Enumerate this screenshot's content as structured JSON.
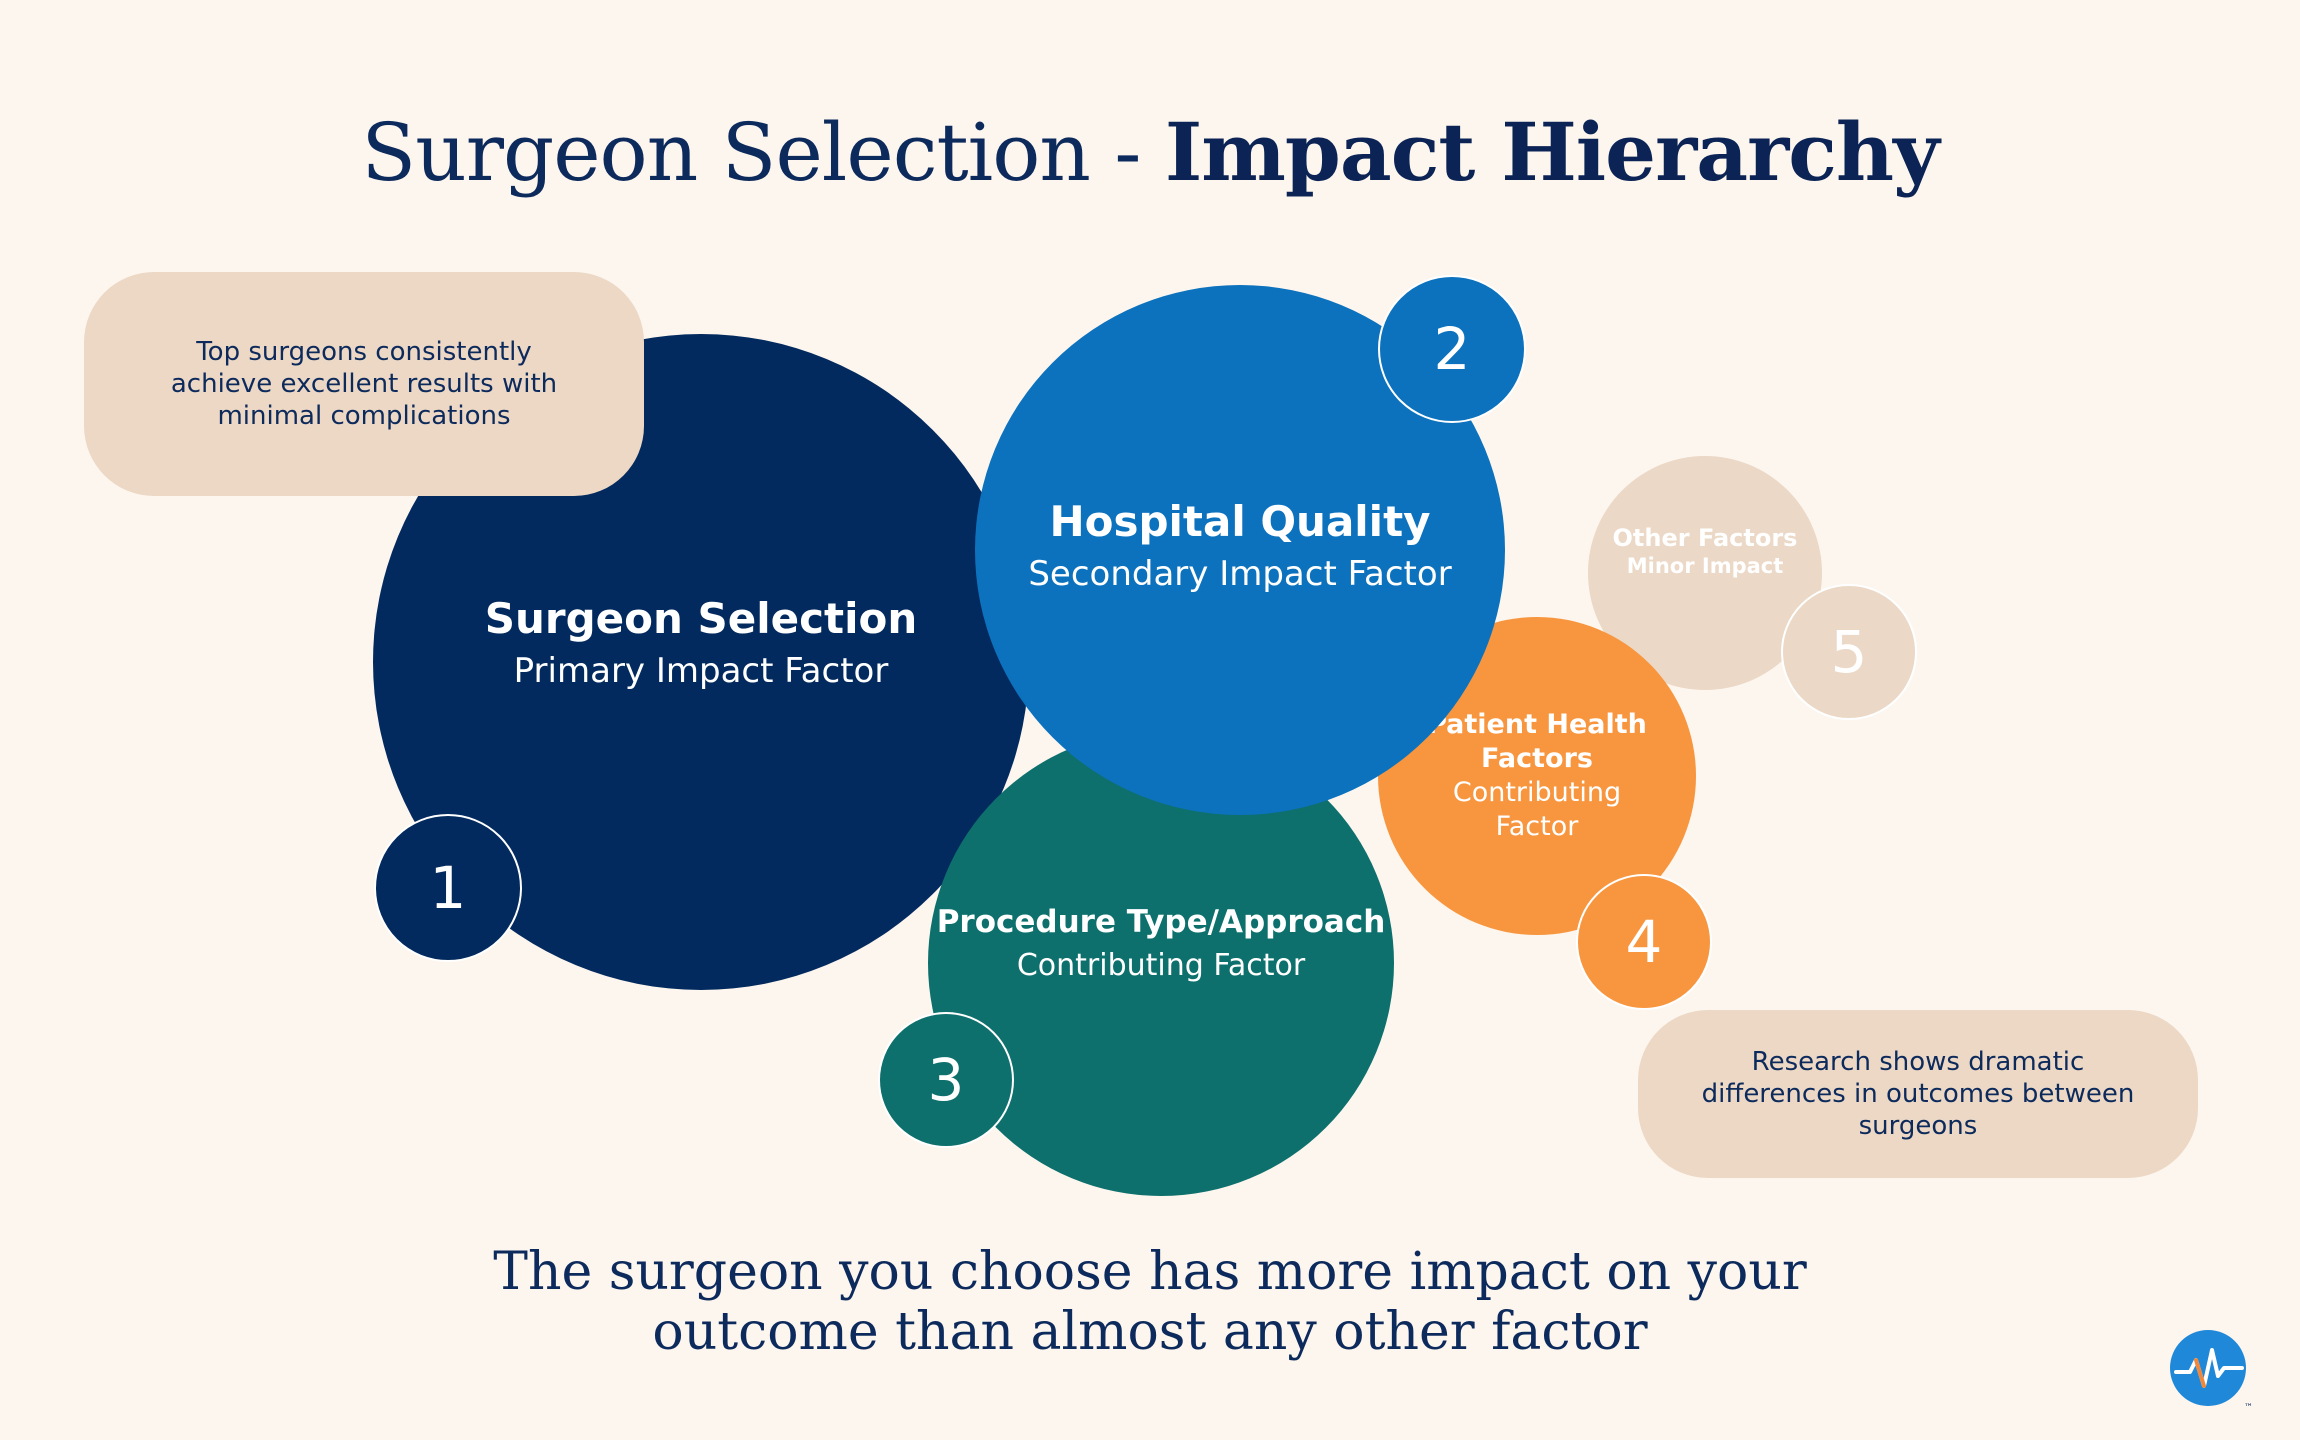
{
  "title": {
    "regular": "Surgeon Selection - ",
    "bold": "Impact Hierarchy"
  },
  "factors": [
    {
      "rank": "1",
      "name": "Surgeon Selection",
      "subtitle": "Primary Impact Factor",
      "color": "#032a5e"
    },
    {
      "rank": "2",
      "name": "Hospital Quality",
      "subtitle": "Secondary Impact Factor",
      "color": "#0c72bd"
    },
    {
      "rank": "3",
      "name": "Procedure Type/Approach",
      "subtitle": "Contributing Factor",
      "color": "#0d706d"
    },
    {
      "rank": "4",
      "name": "Patient Health Factors",
      "subtitle": "Contributing Factor",
      "color": "#f7963f"
    },
    {
      "rank": "5",
      "name": "Other Factors",
      "subtitle": "Minor Impact",
      "color": "#ebd8c6"
    }
  ],
  "notes": {
    "top": "Top surgeons consistently achieve excellent results with minimal complications",
    "bottom": "Research shows dramatic differences in outcomes between surgeons"
  },
  "tagline": {
    "line1": "The surgeon you choose has more impact on your",
    "line2": "outcome than almost any other factor"
  },
  "logo": {
    "icon": "heartbeat-logo-icon",
    "mark": "™",
    "colors": {
      "circle": "#1f88d8",
      "line": "#ffffff",
      "accent": "#f0883c"
    }
  }
}
